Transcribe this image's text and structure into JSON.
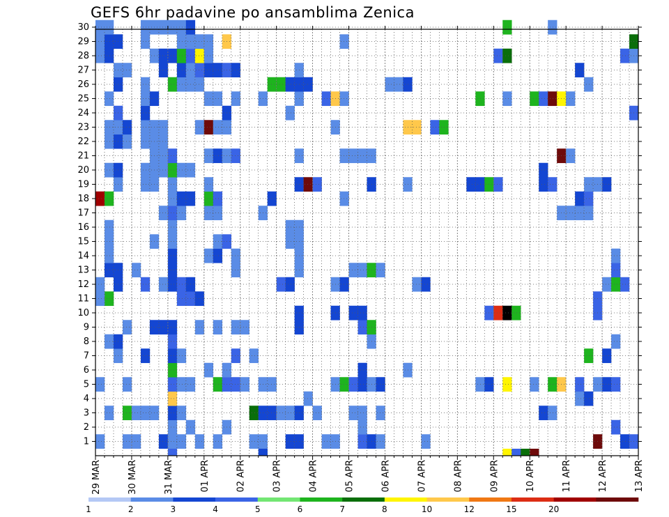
{
  "chart_data": {
    "type": "heatmap",
    "title": "GEFS 6hr padavine po ansamblima Zenica",
    "xlabel": "",
    "ylabel": "",
    "x_tick_labels": [
      "29 MAR",
      "30 MAR",
      "31 MAR",
      "01 APR",
      "02 APR",
      "03 APR",
      "04 APR",
      "05 APR",
      "06 APR",
      "07 APR",
      "08 APR",
      "09 APR",
      "10 APR",
      "11 APR",
      "12 APR",
      "13 APR"
    ],
    "x_steps_per_day": 4,
    "x_steps_total": 60,
    "y_tick_labels": [
      "1",
      "2",
      "3",
      "4",
      "5",
      "6",
      "7",
      "8",
      "9",
      "10",
      "11",
      "12",
      "13",
      "14",
      "15",
      "16",
      "17",
      "18",
      "19",
      "20",
      "21",
      "22",
      "23",
      "24",
      "25",
      "26",
      "27",
      "28",
      "29",
      "30"
    ],
    "grid": true,
    "legend": {
      "position": "bottom",
      "thresholds": [
        "1",
        "2",
        "3",
        "4",
        "5",
        "6",
        "7",
        "8",
        "10",
        "12",
        "15",
        "20"
      ],
      "colors": [
        "#b4c8f5",
        "#5a8ce6",
        "#1446d2",
        "#3a64e6",
        "#73e673",
        "#1eb41e",
        "#0a6e0a",
        "#fff500",
        "#ffc84b",
        "#f07814",
        "#dc2d14",
        "#a00000",
        "#6e0a0a"
      ]
    },
    "cells_by_member": {
      "1": [
        [
          0,
          1
        ],
        [
          3,
          1
        ],
        [
          4,
          1
        ],
        [
          7,
          2
        ],
        [
          8,
          1
        ],
        [
          9,
          1
        ],
        [
          11,
          1
        ],
        [
          13,
          1
        ],
        [
          17,
          1
        ],
        [
          18,
          1
        ],
        [
          21,
          2
        ],
        [
          22,
          2
        ],
        [
          25,
          1
        ],
        [
          26,
          1
        ],
        [
          29,
          3
        ],
        [
          30,
          2
        ],
        [
          31,
          1
        ],
        [
          36,
          1
        ],
        [
          55,
          12
        ],
        [
          58,
          2
        ],
        [
          59,
          3
        ]
      ],
      "2": [
        [
          8,
          1
        ],
        [
          10,
          1
        ],
        [
          14,
          1
        ],
        [
          29,
          1
        ],
        [
          57,
          3
        ]
      ],
      "3": [
        [
          1,
          1
        ],
        [
          3,
          5
        ],
        [
          4,
          1
        ],
        [
          5,
          1
        ],
        [
          6,
          1
        ],
        [
          8,
          2
        ],
        [
          9,
          1
        ],
        [
          17,
          6
        ],
        [
          18,
          2
        ],
        [
          19,
          2
        ],
        [
          20,
          1
        ],
        [
          21,
          1
        ],
        [
          22,
          2
        ],
        [
          24,
          1
        ],
        [
          28,
          1
        ],
        [
          29,
          1
        ],
        [
          31,
          1
        ],
        [
          49,
          2
        ],
        [
          50,
          1
        ]
      ],
      "4": [
        [
          8,
          8
        ],
        [
          23,
          1
        ],
        [
          53,
          1
        ],
        [
          54,
          2
        ]
      ],
      "5": [
        [
          0,
          1
        ],
        [
          3,
          1
        ],
        [
          8,
          3
        ],
        [
          9,
          1
        ],
        [
          10,
          1
        ],
        [
          13,
          5
        ],
        [
          14,
          3
        ],
        [
          15,
          3
        ],
        [
          16,
          1
        ],
        [
          18,
          1
        ],
        [
          19,
          1
        ],
        [
          26,
          1
        ],
        [
          27,
          5
        ],
        [
          28,
          3
        ],
        [
          29,
          2
        ],
        [
          30,
          1
        ],
        [
          31,
          2
        ],
        [
          42,
          1
        ],
        [
          43,
          2
        ],
        [
          45,
          7
        ],
        [
          48,
          1
        ],
        [
          50,
          5
        ],
        [
          51,
          8
        ],
        [
          53,
          3
        ],
        [
          55,
          1
        ],
        [
          56,
          2
        ],
        [
          57,
          3
        ]
      ],
      "6": [
        [
          8,
          5
        ],
        [
          12,
          1
        ],
        [
          14,
          1
        ],
        [
          29,
          2
        ],
        [
          34,
          1
        ]
      ],
      "7": [
        [
          2,
          1
        ],
        [
          5,
          2
        ],
        [
          8,
          2
        ],
        [
          9,
          1
        ],
        [
          15,
          3
        ],
        [
          17,
          1
        ],
        [
          54,
          5
        ],
        [
          56,
          2
        ]
      ],
      "8": [
        [
          1,
          1
        ],
        [
          2,
          2
        ],
        [
          8,
          3
        ],
        [
          30,
          1
        ],
        [
          57,
          1
        ]
      ],
      "9": [
        [
          3,
          1
        ],
        [
          6,
          2
        ],
        [
          7,
          2
        ],
        [
          8,
          2
        ],
        [
          11,
          1
        ],
        [
          13,
          1
        ],
        [
          15,
          1
        ],
        [
          16,
          1
        ],
        [
          22,
          2
        ],
        [
          29,
          3
        ],
        [
          30,
          5
        ]
      ],
      "10": [
        [
          22,
          2
        ],
        [
          26,
          2
        ],
        [
          28,
          2
        ],
        [
          29,
          2
        ],
        [
          43,
          3
        ],
        [
          44,
          10
        ],
        [
          45,
          15
        ],
        [
          46,
          5
        ],
        [
          55,
          3
        ]
      ],
      "11": [
        [
          1,
          5
        ],
        [
          0,
          1
        ],
        [
          9,
          3
        ],
        [
          10,
          3
        ],
        [
          11,
          2
        ],
        [
          55,
          3
        ]
      ],
      "12": [
        [
          0,
          1
        ],
        [
          2,
          2
        ],
        [
          5,
          3
        ],
        [
          7,
          1
        ],
        [
          8,
          2
        ],
        [
          9,
          3
        ],
        [
          10,
          2
        ],
        [
          20,
          3
        ],
        [
          21,
          2
        ],
        [
          26,
          1
        ],
        [
          27,
          2
        ],
        [
          35,
          1
        ],
        [
          36,
          2
        ],
        [
          56,
          1
        ],
        [
          57,
          5
        ],
        [
          58,
          3
        ]
      ],
      "13": [
        [
          1,
          2
        ],
        [
          2,
          2
        ],
        [
          4,
          1
        ],
        [
          8,
          2
        ],
        [
          15,
          1
        ],
        [
          22,
          1
        ],
        [
          28,
          1
        ],
        [
          29,
          1
        ],
        [
          30,
          5
        ],
        [
          31,
          1
        ],
        [
          57,
          3
        ]
      ],
      "14": [
        [
          1,
          1
        ],
        [
          8,
          2
        ],
        [
          12,
          1
        ],
        [
          13,
          2
        ],
        [
          15,
          1
        ],
        [
          22,
          1
        ],
        [
          57,
          1
        ]
      ],
      "15": [
        [
          1,
          1
        ],
        [
          6,
          1
        ],
        [
          8,
          1
        ],
        [
          13,
          1
        ],
        [
          14,
          3
        ],
        [
          21,
          1
        ],
        [
          22,
          1
        ]
      ],
      "16": [
        [
          1,
          1
        ],
        [
          8,
          1
        ],
        [
          21,
          1
        ],
        [
          22,
          1
        ]
      ],
      "17": [
        [
          7,
          1
        ],
        [
          8,
          3
        ],
        [
          9,
          1
        ],
        [
          12,
          1
        ],
        [
          13,
          1
        ],
        [
          18,
          1
        ],
        [
          51,
          1
        ],
        [
          52,
          1
        ],
        [
          53,
          1
        ],
        [
          54,
          1
        ]
      ],
      "18": [
        [
          0,
          11
        ],
        [
          1,
          5
        ],
        [
          8,
          1
        ],
        [
          9,
          2
        ],
        [
          10,
          2
        ],
        [
          12,
          5
        ],
        [
          13,
          3
        ],
        [
          19,
          2
        ],
        [
          27,
          1
        ],
        [
          53,
          2
        ],
        [
          54,
          3
        ]
      ],
      "19": [
        [
          2,
          1
        ],
        [
          5,
          1
        ],
        [
          6,
          1
        ],
        [
          8,
          1
        ],
        [
          12,
          1
        ],
        [
          22,
          2
        ],
        [
          23,
          12
        ],
        [
          24,
          3
        ],
        [
          30,
          2
        ],
        [
          34,
          1
        ],
        [
          41,
          2
        ],
        [
          42,
          2
        ],
        [
          43,
          5
        ],
        [
          44,
          3
        ],
        [
          49,
          2
        ],
        [
          50,
          3
        ],
        [
          54,
          1
        ],
        [
          55,
          1
        ],
        [
          56,
          2
        ]
      ],
      "20": [
        [
          1,
          1
        ],
        [
          2,
          2
        ],
        [
          5,
          1
        ],
        [
          6,
          1
        ],
        [
          7,
          1
        ],
        [
          8,
          5
        ],
        [
          9,
          1
        ],
        [
          10,
          1
        ],
        [
          49,
          2
        ]
      ],
      "21": [
        [
          6,
          1
        ],
        [
          7,
          1
        ],
        [
          8,
          3
        ],
        [
          12,
          1
        ],
        [
          13,
          2
        ],
        [
          14,
          1
        ],
        [
          15,
          3
        ],
        [
          22,
          1
        ],
        [
          27,
          1
        ],
        [
          28,
          1
        ],
        [
          29,
          1
        ],
        [
          30,
          1
        ],
        [
          51,
          12
        ],
        [
          52,
          1
        ]
      ],
      "22": [
        [
          1,
          1
        ],
        [
          2,
          2
        ],
        [
          3,
          1
        ],
        [
          5,
          1
        ],
        [
          6,
          1
        ],
        [
          7,
          1
        ]
      ],
      "23": [
        [
          1,
          1
        ],
        [
          2,
          1
        ],
        [
          3,
          2
        ],
        [
          5,
          1
        ],
        [
          6,
          1
        ],
        [
          7,
          1
        ],
        [
          11,
          1
        ],
        [
          12,
          12
        ],
        [
          13,
          1
        ],
        [
          14,
          1
        ],
        [
          26,
          1
        ],
        [
          34,
          8
        ],
        [
          35,
          8
        ],
        [
          37,
          3
        ],
        [
          38,
          5
        ]
      ],
      "24": [
        [
          2,
          3
        ],
        [
          5,
          2
        ],
        [
          14,
          2
        ],
        [
          21,
          1
        ],
        [
          59,
          3
        ]
      ],
      "25": [
        [
          1,
          1
        ],
        [
          5,
          1
        ],
        [
          6,
          2
        ],
        [
          12,
          1
        ],
        [
          13,
          1
        ],
        [
          15,
          1
        ],
        [
          18,
          1
        ],
        [
          22,
          1
        ],
        [
          25,
          3
        ],
        [
          26,
          8
        ],
        [
          27,
          1
        ],
        [
          42,
          5
        ],
        [
          45,
          1
        ],
        [
          48,
          5
        ],
        [
          49,
          3
        ],
        [
          50,
          12
        ],
        [
          51,
          7
        ],
        [
          52,
          1
        ]
      ],
      "26": [
        [
          2,
          2
        ],
        [
          5,
          1
        ],
        [
          8,
          5
        ],
        [
          9,
          1
        ],
        [
          10,
          1
        ],
        [
          11,
          1
        ],
        [
          19,
          5
        ],
        [
          20,
          5
        ],
        [
          21,
          2
        ],
        [
          22,
          2
        ],
        [
          23,
          2
        ],
        [
          32,
          1
        ],
        [
          33,
          1
        ],
        [
          34,
          2
        ],
        [
          54,
          1
        ]
      ],
      "27": [
        [
          2,
          1
        ],
        [
          3,
          1
        ],
        [
          7,
          2
        ],
        [
          9,
          2
        ],
        [
          10,
          1
        ],
        [
          11,
          3
        ],
        [
          12,
          2
        ],
        [
          13,
          2
        ],
        [
          14,
          3
        ],
        [
          15,
          2
        ],
        [
          22,
          1
        ],
        [
          53,
          2
        ]
      ],
      "28": [
        [
          0,
          1
        ],
        [
          1,
          2
        ],
        [
          6,
          1
        ],
        [
          7,
          2
        ],
        [
          8,
          2
        ],
        [
          9,
          5
        ],
        [
          10,
          3
        ],
        [
          11,
          7
        ],
        [
          12,
          1
        ],
        [
          44,
          3
        ],
        [
          45,
          6
        ],
        [
          58,
          3
        ],
        [
          59,
          1
        ]
      ],
      "29": [
        [
          0,
          1
        ],
        [
          1,
          2
        ],
        [
          2,
          2
        ],
        [
          5,
          1
        ],
        [
          9,
          1
        ],
        [
          10,
          1
        ],
        [
          11,
          1
        ],
        [
          12,
          1
        ],
        [
          14,
          8
        ],
        [
          27,
          1
        ],
        [
          59,
          6
        ]
      ],
      "30": [
        [
          0,
          1
        ],
        [
          1,
          1
        ],
        [
          5,
          1
        ],
        [
          6,
          1
        ],
        [
          7,
          1
        ],
        [
          8,
          1
        ],
        [
          9,
          1
        ],
        [
          10,
          2
        ],
        [
          45,
          5
        ],
        [
          50,
          1
        ]
      ]
    },
    "bottom_strip_cells": [
      [
        8,
        3
      ],
      [
        18,
        2
      ],
      [
        45,
        7
      ],
      [
        46,
        3
      ],
      [
        47,
        6
      ],
      [
        48,
        12
      ]
    ]
  }
}
